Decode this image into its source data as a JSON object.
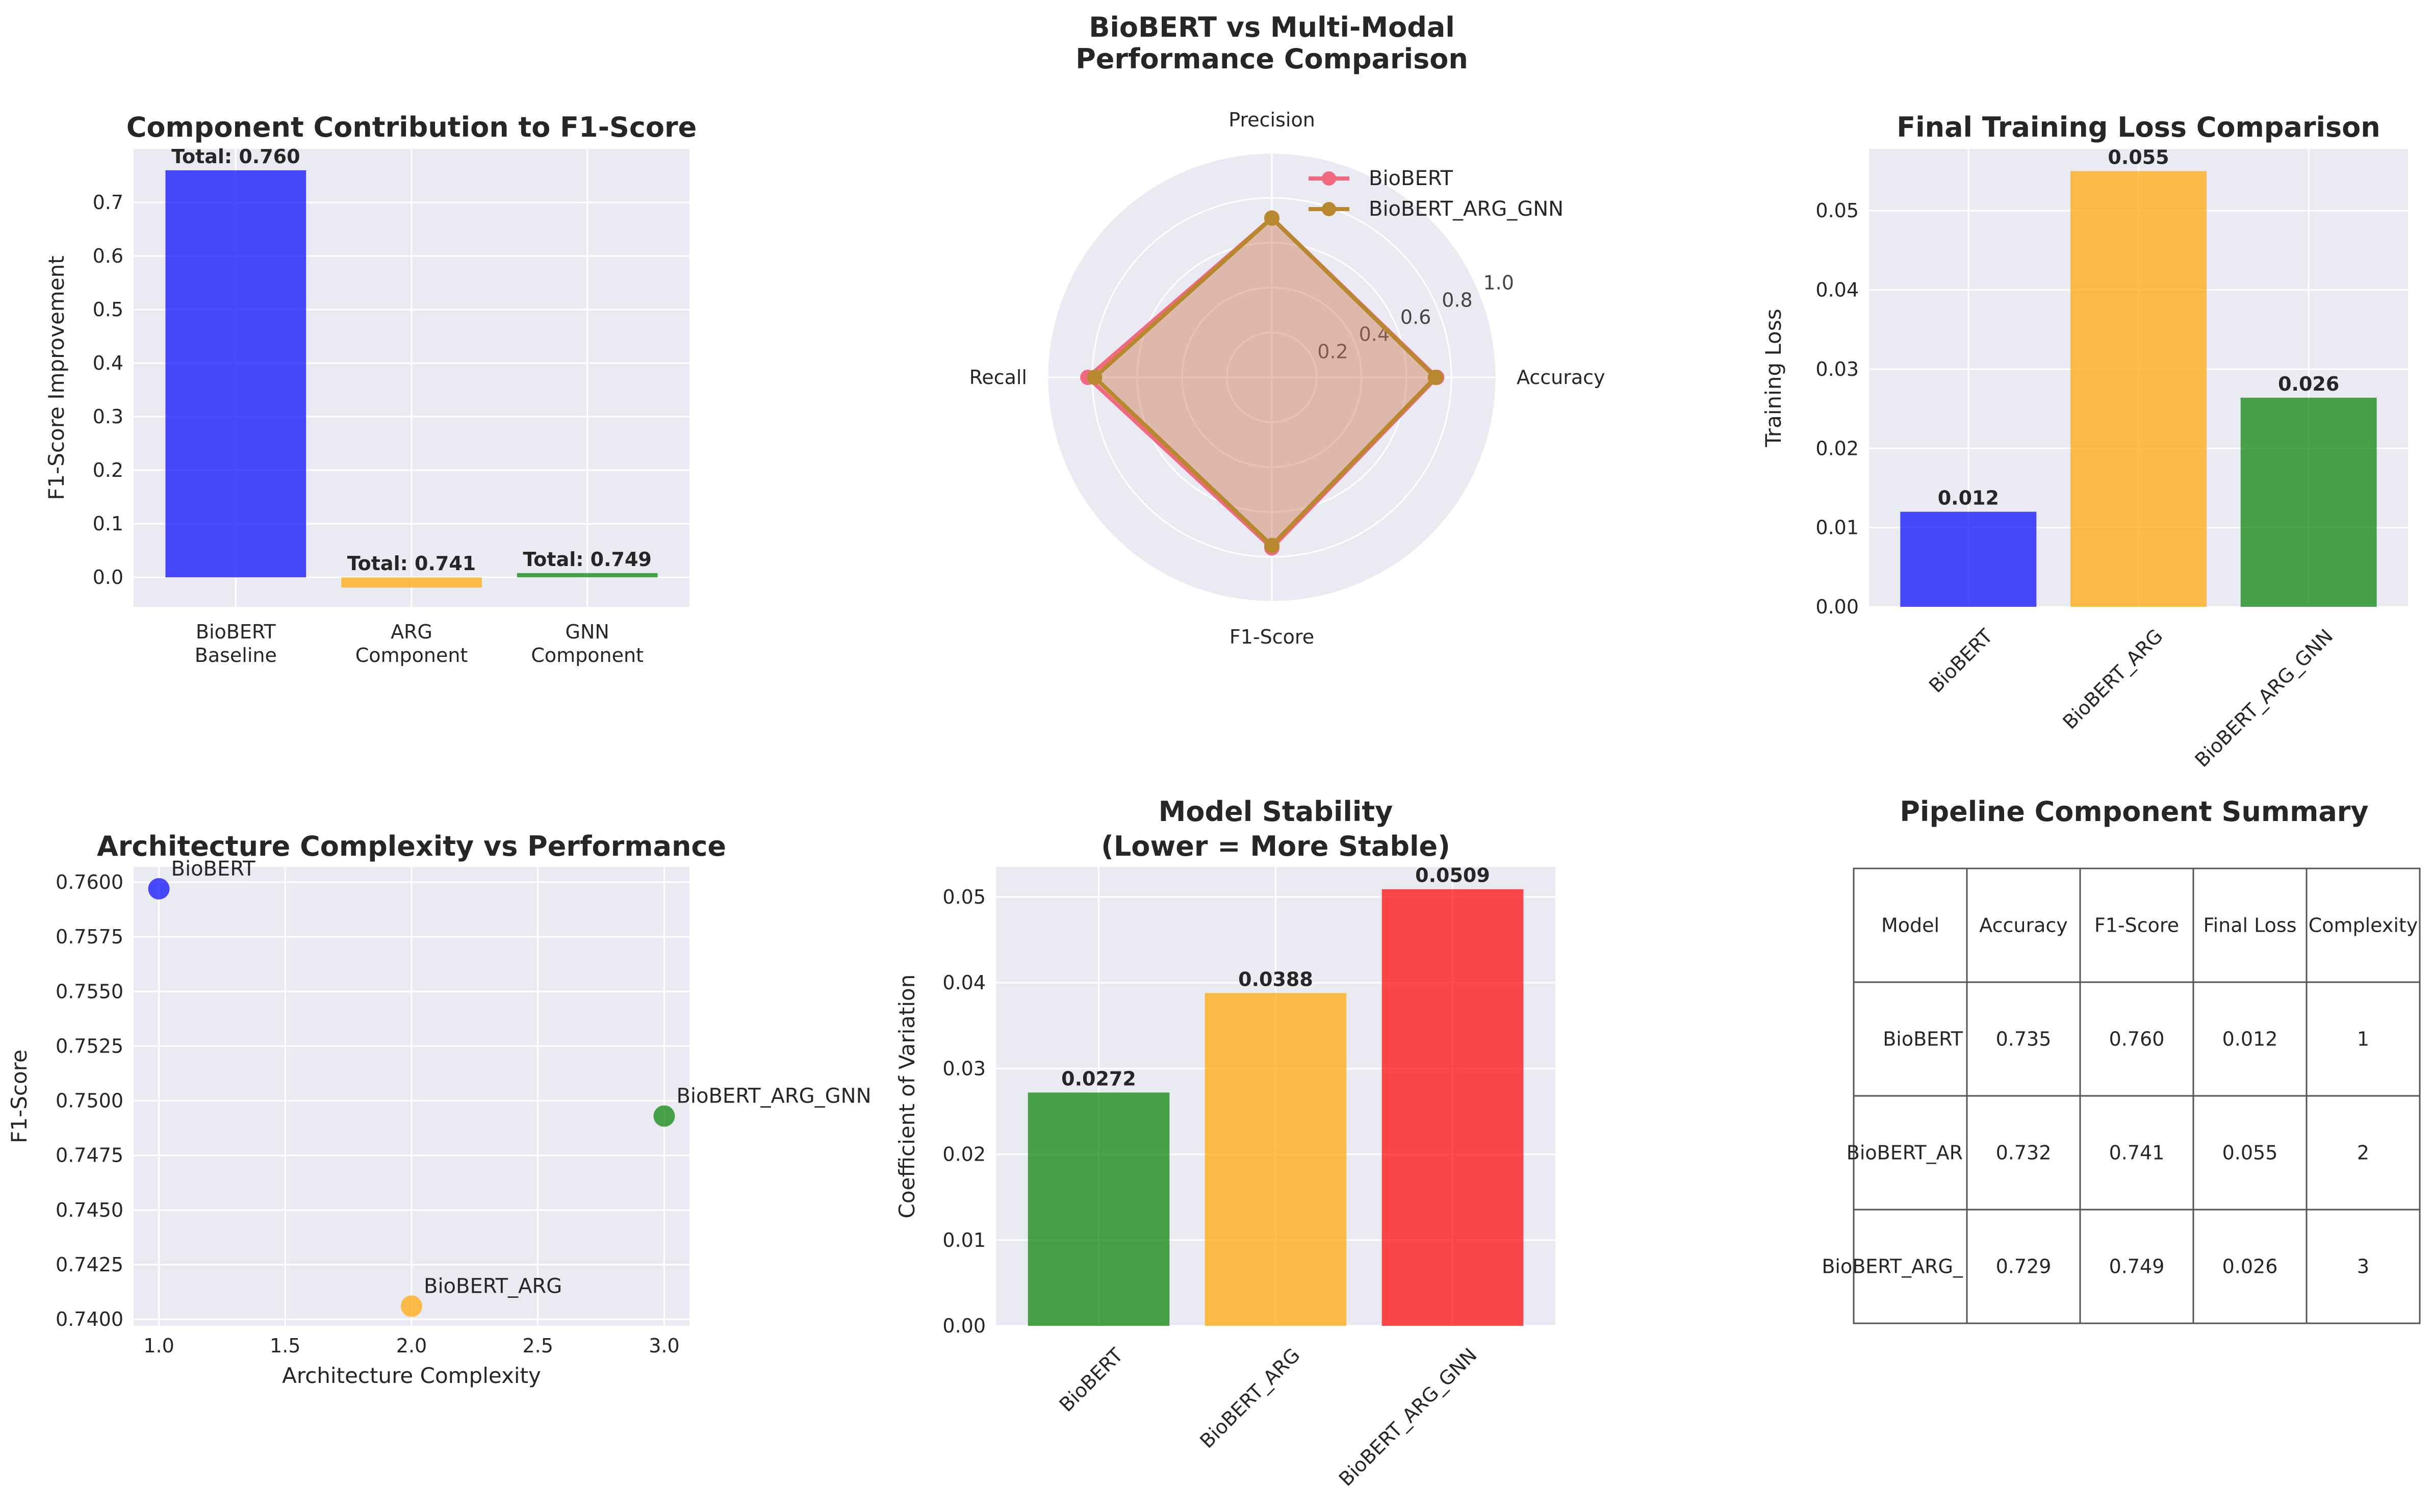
{
  "colors": {
    "panel_bg": "#EAEAF2",
    "grid": "#FFFFFF",
    "blue": "#0000FF",
    "orange": "#FFA500",
    "green": "#008000",
    "red": "#FF0000",
    "radar_biobert": "#F0697E",
    "radar_arg_gnn": "#B8882E"
  },
  "chart_data": [
    {
      "id": "contribution",
      "type": "bar",
      "title": "Component Contribution to F1-Score",
      "ylabel": "F1-Score Improvement",
      "xlabel": "",
      "categories": [
        "BioBERT\nBaseline",
        "ARG\nComponent",
        "GNN\nComponent"
      ],
      "values": [
        0.76,
        -0.019,
        0.008
      ],
      "bar_labels": [
        "Total: 0.760",
        "Total: 0.741",
        "Total: 0.749"
      ],
      "bar_colors": [
        "#0000FF",
        "#FFA500",
        "#008000"
      ],
      "ylim": [
        -0.055,
        0.8
      ],
      "yticks": [
        0.0,
        0.1,
        0.2,
        0.3,
        0.4,
        0.5,
        0.6,
        0.7
      ],
      "ytick_labels": [
        "0.0",
        "0.1",
        "0.2",
        "0.3",
        "0.4",
        "0.5",
        "0.6",
        "0.7"
      ],
      "grid": true
    },
    {
      "id": "radar",
      "type": "radar",
      "title": "BioBERT vs Multi-Modal\nPerformance Comparison",
      "axes": [
        "Accuracy",
        "Precision",
        "Recall",
        "F1-Score"
      ],
      "rmax": 1.0,
      "rticks": [
        0.2,
        0.4,
        0.6,
        0.8,
        1.0
      ],
      "rtick_labels": [
        "0.2",
        "0.4",
        "0.6",
        "0.8",
        "1.0"
      ],
      "series": [
        {
          "name": "BioBERT",
          "values": [
            0.735,
            0.71,
            0.82,
            0.76
          ],
          "color": "#F0697E"
        },
        {
          "name": "BioBERT_ARG_GNN",
          "values": [
            0.729,
            0.71,
            0.79,
            0.749
          ],
          "color": "#B8882E"
        }
      ],
      "legend": "top-right"
    },
    {
      "id": "training-loss",
      "type": "bar",
      "title": "Final Training Loss Comparison",
      "ylabel": "Training Loss",
      "xlabel": "",
      "categories": [
        "BioBERT",
        "BioBERT_ARG",
        "BioBERT_ARG_GNN"
      ],
      "values": [
        0.012,
        0.055,
        0.0264
      ],
      "bar_labels": [
        "0.012",
        "0.055",
        "0.026"
      ],
      "bar_colors": [
        "#0000FF",
        "#FFA500",
        "#008000"
      ],
      "ylim": [
        0,
        0.0578
      ],
      "yticks": [
        0.0,
        0.01,
        0.02,
        0.03,
        0.04,
        0.05
      ],
      "ytick_labels": [
        "0.00",
        "0.01",
        "0.02",
        "0.03",
        "0.04",
        "0.05"
      ],
      "rotate_xticks": true,
      "grid": true
    },
    {
      "id": "complexity",
      "type": "scatter",
      "title": "Architecture Complexity vs Performance",
      "xlabel": "Architecture Complexity",
      "ylabel": "F1-Score",
      "points": [
        {
          "x": 1,
          "y": 0.7597,
          "label": "BioBERT",
          "color": "#0000FF"
        },
        {
          "x": 2,
          "y": 0.7406,
          "label": "BioBERT_ARG",
          "color": "#FFA500"
        },
        {
          "x": 3,
          "y": 0.7493,
          "label": "BioBERT_ARG_GNN",
          "color": "#008000"
        }
      ],
      "xlim": [
        0.9,
        3.1
      ],
      "ylim": [
        0.7397,
        0.7607
      ],
      "xticks": [
        1.0,
        1.5,
        2.0,
        2.5,
        3.0
      ],
      "xtick_labels": [
        "1.0",
        "1.5",
        "2.0",
        "2.5",
        "3.0"
      ],
      "yticks": [
        0.74,
        0.7425,
        0.745,
        0.7475,
        0.75,
        0.7525,
        0.755,
        0.7575,
        0.76
      ],
      "ytick_labels": [
        "0.7400",
        "0.7425",
        "0.7450",
        "0.7475",
        "0.7500",
        "0.7525",
        "0.7550",
        "0.7575",
        "0.7600"
      ],
      "grid": true
    },
    {
      "id": "stability",
      "type": "bar",
      "title": "Model Stability\n(Lower = More Stable)",
      "ylabel": "Coefficient of Variation",
      "xlabel": "",
      "categories": [
        "BioBERT",
        "BioBERT_ARG",
        "BioBERT_ARG_GNN"
      ],
      "values": [
        0.0272,
        0.0388,
        0.0509
      ],
      "bar_labels": [
        "0.0272",
        "0.0388",
        "0.0509"
      ],
      "bar_colors": [
        "#008000",
        "#FFA500",
        "#FF0000"
      ],
      "ylim": [
        0,
        0.0535
      ],
      "yticks": [
        0.0,
        0.01,
        0.02,
        0.03,
        0.04,
        0.05
      ],
      "ytick_labels": [
        "0.00",
        "0.01",
        "0.02",
        "0.03",
        "0.04",
        "0.05"
      ],
      "rotate_xticks": true,
      "grid": true
    },
    {
      "id": "summary",
      "type": "table",
      "title": "Pipeline Component Summary",
      "columns": [
        "Model",
        "Accuracy",
        "F1-Score",
        "Final Loss",
        "Complexity"
      ],
      "rows": [
        [
          "BioBERT",
          "0.735",
          "0.760",
          "0.012",
          "1"
        ],
        [
          "BioBERT_AR",
          "0.732",
          "0.741",
          "0.055",
          "2"
        ],
        [
          "BioBERT_ARG_",
          "0.729",
          "0.749",
          "0.026",
          "3"
        ]
      ]
    }
  ]
}
